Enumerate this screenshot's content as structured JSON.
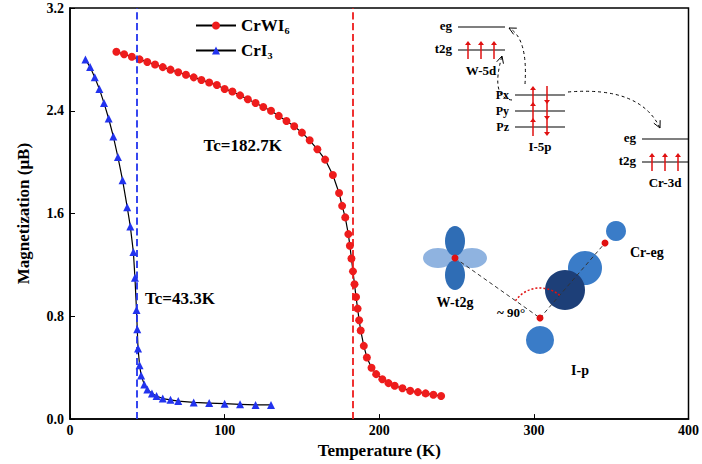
{
  "chart_data": {
    "type": "line",
    "x_label": "Temperature (K)",
    "y_label": "Magnetization (μB)",
    "xlim": [
      0,
      400
    ],
    "xticks": [
      0,
      100,
      200,
      300,
      400
    ],
    "ylim": [
      0,
      3.2
    ],
    "yticks": [
      {
        "value": 0,
        "label": "0.0"
      },
      {
        "value": 0.8,
        "label": "0.8"
      },
      {
        "value": 1.6,
        "label": "1.6"
      },
      {
        "value": 2.4,
        "label": "2.4"
      },
      {
        "value": 3.2,
        "label": "3.2"
      }
    ],
    "legend": "top",
    "grid": false,
    "series": [
      {
        "name": "CrWI₆",
        "color": "#ee1c1c",
        "marker": "circle",
        "line_style": "solid",
        "tc": 182.7,
        "tc_label": "Tc=182.7K",
        "x": [
          30,
          35,
          40,
          45,
          50,
          55,
          60,
          65,
          70,
          75,
          80,
          85,
          90,
          95,
          100,
          105,
          110,
          115,
          120,
          125,
          130,
          135,
          140,
          145,
          150,
          155,
          160,
          165,
          170,
          174,
          176,
          178,
          180,
          181,
          182,
          183,
          184,
          185,
          186,
          187,
          188,
          190,
          192,
          195,
          198,
          202,
          206,
          210,
          215,
          220,
          225,
          230,
          235,
          240
        ],
        "values": [
          2.86,
          2.84,
          2.82,
          2.8,
          2.78,
          2.76,
          2.74,
          2.72,
          2.7,
          2.68,
          2.66,
          2.64,
          2.62,
          2.6,
          2.57,
          2.55,
          2.52,
          2.49,
          2.46,
          2.43,
          2.4,
          2.36,
          2.32,
          2.28,
          2.23,
          2.17,
          2.1,
          2.02,
          1.9,
          1.76,
          1.66,
          1.57,
          1.44,
          1.35,
          1.25,
          1.15,
          1.05,
          0.95,
          0.86,
          0.77,
          0.69,
          0.57,
          0.48,
          0.4,
          0.35,
          0.31,
          0.28,
          0.26,
          0.24,
          0.22,
          0.21,
          0.2,
          0.19,
          0.18
        ]
      },
      {
        "name": "CrI₃",
        "color": "#2233ee",
        "marker": "triangle",
        "line_style": "solid",
        "tc": 43.3,
        "tc_label": "Tc=43.3K",
        "x": [
          10,
          13,
          16,
          19,
          22,
          25,
          28,
          31,
          34,
          37,
          39,
          41,
          42,
          43,
          43.5,
          44,
          45,
          46,
          48,
          50,
          53,
          56,
          60,
          65,
          70,
          80,
          90,
          100,
          110,
          120,
          130
        ],
        "values": [
          2.8,
          2.74,
          2.66,
          2.57,
          2.46,
          2.34,
          2.2,
          2.04,
          1.86,
          1.65,
          1.5,
          1.3,
          1.1,
          0.85,
          0.7,
          0.55,
          0.42,
          0.34,
          0.27,
          0.23,
          0.2,
          0.18,
          0.16,
          0.15,
          0.14,
          0.13,
          0.125,
          0.12,
          0.115,
          0.11,
          0.11
        ]
      }
    ],
    "inset": {
      "w_levels": [
        "eg",
        "t2g"
      ],
      "w_label": "W-5d",
      "i_levels": [
        "Px",
        "Py",
        "Pz"
      ],
      "i_label": "I-5p",
      "cr_levels": [
        "eg",
        "t2g"
      ],
      "cr_label": "Cr-3d",
      "w_orbital": "W-t2g",
      "angle": "~ 90°",
      "cr_orbital": "Cr-eg",
      "i_orbital": "I-p"
    }
  }
}
